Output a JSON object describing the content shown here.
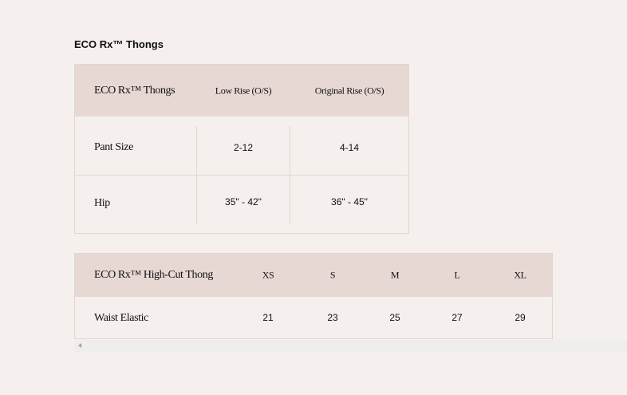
{
  "title": "ECO Rx™ Thongs",
  "table1": {
    "headers": [
      "ECO Rx™ Thongs",
      "Low Rise (O/S)",
      "Original Rise (O/S)"
    ],
    "rows": [
      [
        "Pant Size",
        "2-12",
        "4-14"
      ],
      [
        "Hip",
        "35\" - 42\"",
        "36\" - 45\""
      ]
    ]
  },
  "table2": {
    "headers": [
      "ECO Rx™ High-Cut Thong",
      "XS",
      "S",
      "M",
      "L",
      "XL"
    ],
    "rows": [
      [
        "Waist Elastic",
        "21",
        "23",
        "25",
        "27",
        "29"
      ]
    ]
  },
  "colors": {
    "background": "#f5f0ee",
    "header": "#e8d8d4",
    "border": "#e2d6d3"
  }
}
